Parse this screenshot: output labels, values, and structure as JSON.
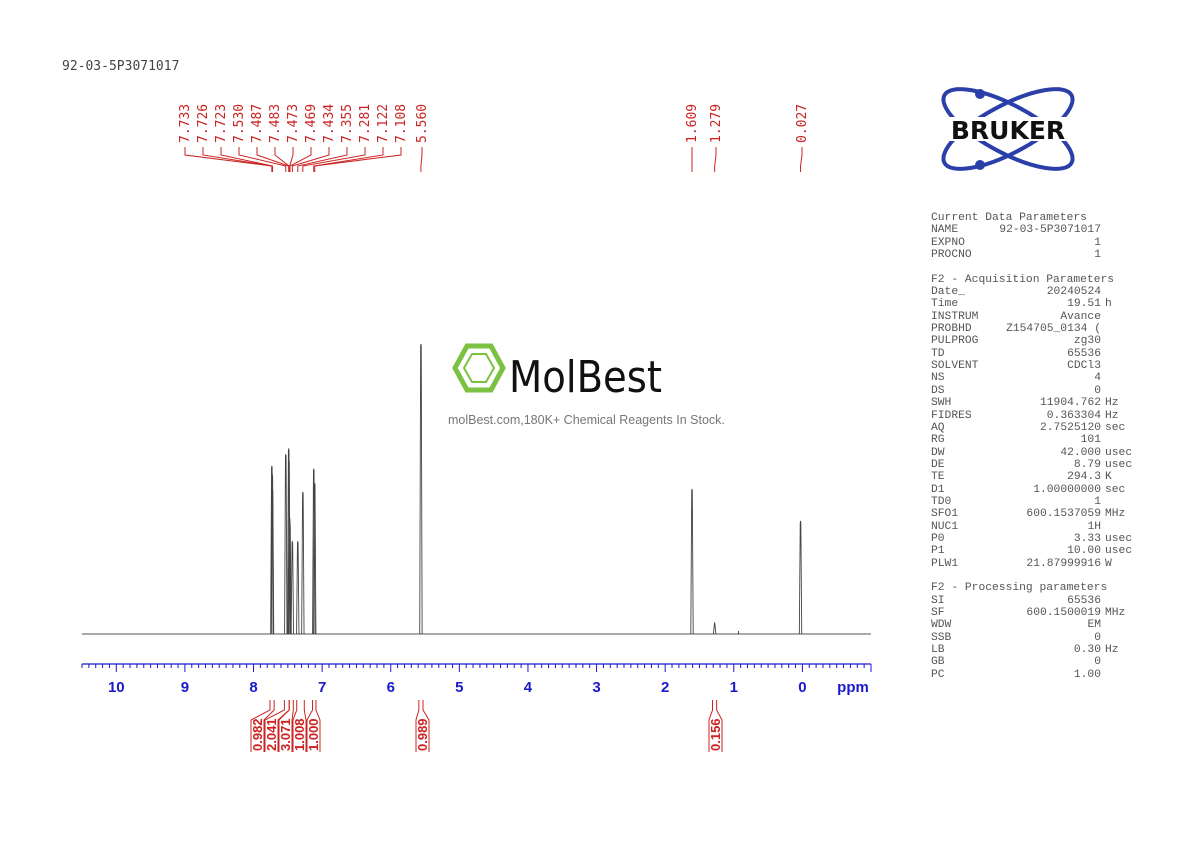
{
  "title": "92-03-5P3071017",
  "logo": {
    "text": "BRUKER",
    "color": "#2a3fa8"
  },
  "watermark": {
    "brand": "MolBest",
    "tagline": "molBest.com,180K+ Chemical Reagents In Stock.",
    "color": "#7cc242"
  },
  "parameters": [
    {
      "heading": "Current Data Parameters",
      "rows": [
        [
          "NAME",
          "92-03-5P3071017",
          ""
        ],
        [
          "EXPNO",
          "1",
          ""
        ],
        [
          "PROCNO",
          "1",
          ""
        ]
      ]
    },
    {
      "heading": "F2 - Acquisition Parameters",
      "rows": [
        [
          "Date_",
          "20240524",
          ""
        ],
        [
          "Time",
          "19.51",
          "h"
        ],
        [
          "INSTRUM",
          "Avance",
          ""
        ],
        [
          "PROBHD",
          "Z154705_0134 (",
          ""
        ],
        [
          "PULPROG",
          "zg30",
          ""
        ],
        [
          "TD",
          "65536",
          ""
        ],
        [
          "SOLVENT",
          "CDCl3",
          ""
        ],
        [
          "NS",
          "4",
          ""
        ],
        [
          "DS",
          "0",
          ""
        ],
        [
          "SWH",
          "11904.762",
          "Hz"
        ],
        [
          "FIDRES",
          "0.363304",
          "Hz"
        ],
        [
          "AQ",
          "2.7525120",
          "sec"
        ],
        [
          "RG",
          "101",
          ""
        ],
        [
          "DW",
          "42.000",
          "usec"
        ],
        [
          "DE",
          "8.79",
          "usec"
        ],
        [
          "TE",
          "294.3",
          "K"
        ],
        [
          "D1",
          "1.00000000",
          "sec"
        ],
        [
          "TD0",
          "1",
          ""
        ],
        [
          "SFO1",
          "600.1537059",
          "MHz"
        ],
        [
          "NUC1",
          "1H",
          ""
        ],
        [
          "P0",
          "3.33",
          "usec"
        ],
        [
          "P1",
          "10.00",
          "usec"
        ],
        [
          "PLW1",
          "21.87999916",
          "W"
        ]
      ]
    },
    {
      "heading": "F2 - Processing parameters",
      "rows": [
        [
          "SI",
          "65536",
          ""
        ],
        [
          "SF",
          "600.1500019",
          "MHz"
        ],
        [
          "WDW",
          "EM",
          ""
        ],
        [
          "SSB",
          "0",
          ""
        ],
        [
          "LB",
          "0.30",
          "Hz"
        ],
        [
          "GB",
          "0",
          ""
        ],
        [
          "PC",
          "1.00",
          ""
        ]
      ]
    }
  ],
  "chart_data": {
    "type": "line",
    "subtype": "1H NMR spectrum",
    "xlabel": "ppm",
    "xlim": [
      10.5,
      -1.0
    ],
    "x_reversed": true,
    "xticks": [
      "10",
      "9",
      "8",
      "7",
      "6",
      "5",
      "4",
      "3",
      "2",
      "1",
      "0"
    ],
    "grid": false,
    "axis_color": "#1a1acc",
    "label_color": "#cc2222",
    "peaks": [
      {
        "ppm": 7.733,
        "label": "7.733",
        "intensity": 58
      },
      {
        "ppm": 7.726,
        "label": "7.726",
        "intensity": 55
      },
      {
        "ppm": 7.723,
        "label": "7.723",
        "intensity": 50
      },
      {
        "ppm": 7.53,
        "label": "7.530",
        "intensity": 62
      },
      {
        "ppm": 7.487,
        "label": "7.487",
        "intensity": 64
      },
      {
        "ppm": 7.483,
        "label": "7.483",
        "intensity": 60
      },
      {
        "ppm": 7.473,
        "label": "7.473",
        "intensity": 40
      },
      {
        "ppm": 7.469,
        "label": "7.469",
        "intensity": 38
      },
      {
        "ppm": 7.434,
        "label": "7.434",
        "intensity": 32
      },
      {
        "ppm": 7.355,
        "label": "7.355",
        "intensity": 32
      },
      {
        "ppm": 7.281,
        "label": "7.281",
        "intensity": 49
      },
      {
        "ppm": 7.122,
        "label": "7.122",
        "intensity": 57
      },
      {
        "ppm": 7.108,
        "label": "7.108",
        "intensity": 52
      },
      {
        "ppm": 5.56,
        "label": "5.560",
        "intensity": 100
      },
      {
        "ppm": 1.609,
        "label": "1.609",
        "intensity": 50
      },
      {
        "ppm": 1.279,
        "label": "1.279",
        "intensity": 4
      },
      {
        "ppm": 0.027,
        "label": "0.027",
        "intensity": 39
      }
    ],
    "integrals": [
      {
        "from": 7.76,
        "to": 7.7,
        "value": "0.982"
      },
      {
        "from": 7.55,
        "to": 7.48,
        "value": "2.041"
      },
      {
        "from": 7.48,
        "to": 7.42,
        "value": "3.071"
      },
      {
        "from": 7.37,
        "to": 7.26,
        "value": "1.008"
      },
      {
        "from": 7.14,
        "to": 7.09,
        "value": "1.000"
      },
      {
        "from": 5.59,
        "to": 5.53,
        "value": "0.989"
      },
      {
        "from": 1.31,
        "to": 1.25,
        "value": "0.156"
      }
    ]
  }
}
